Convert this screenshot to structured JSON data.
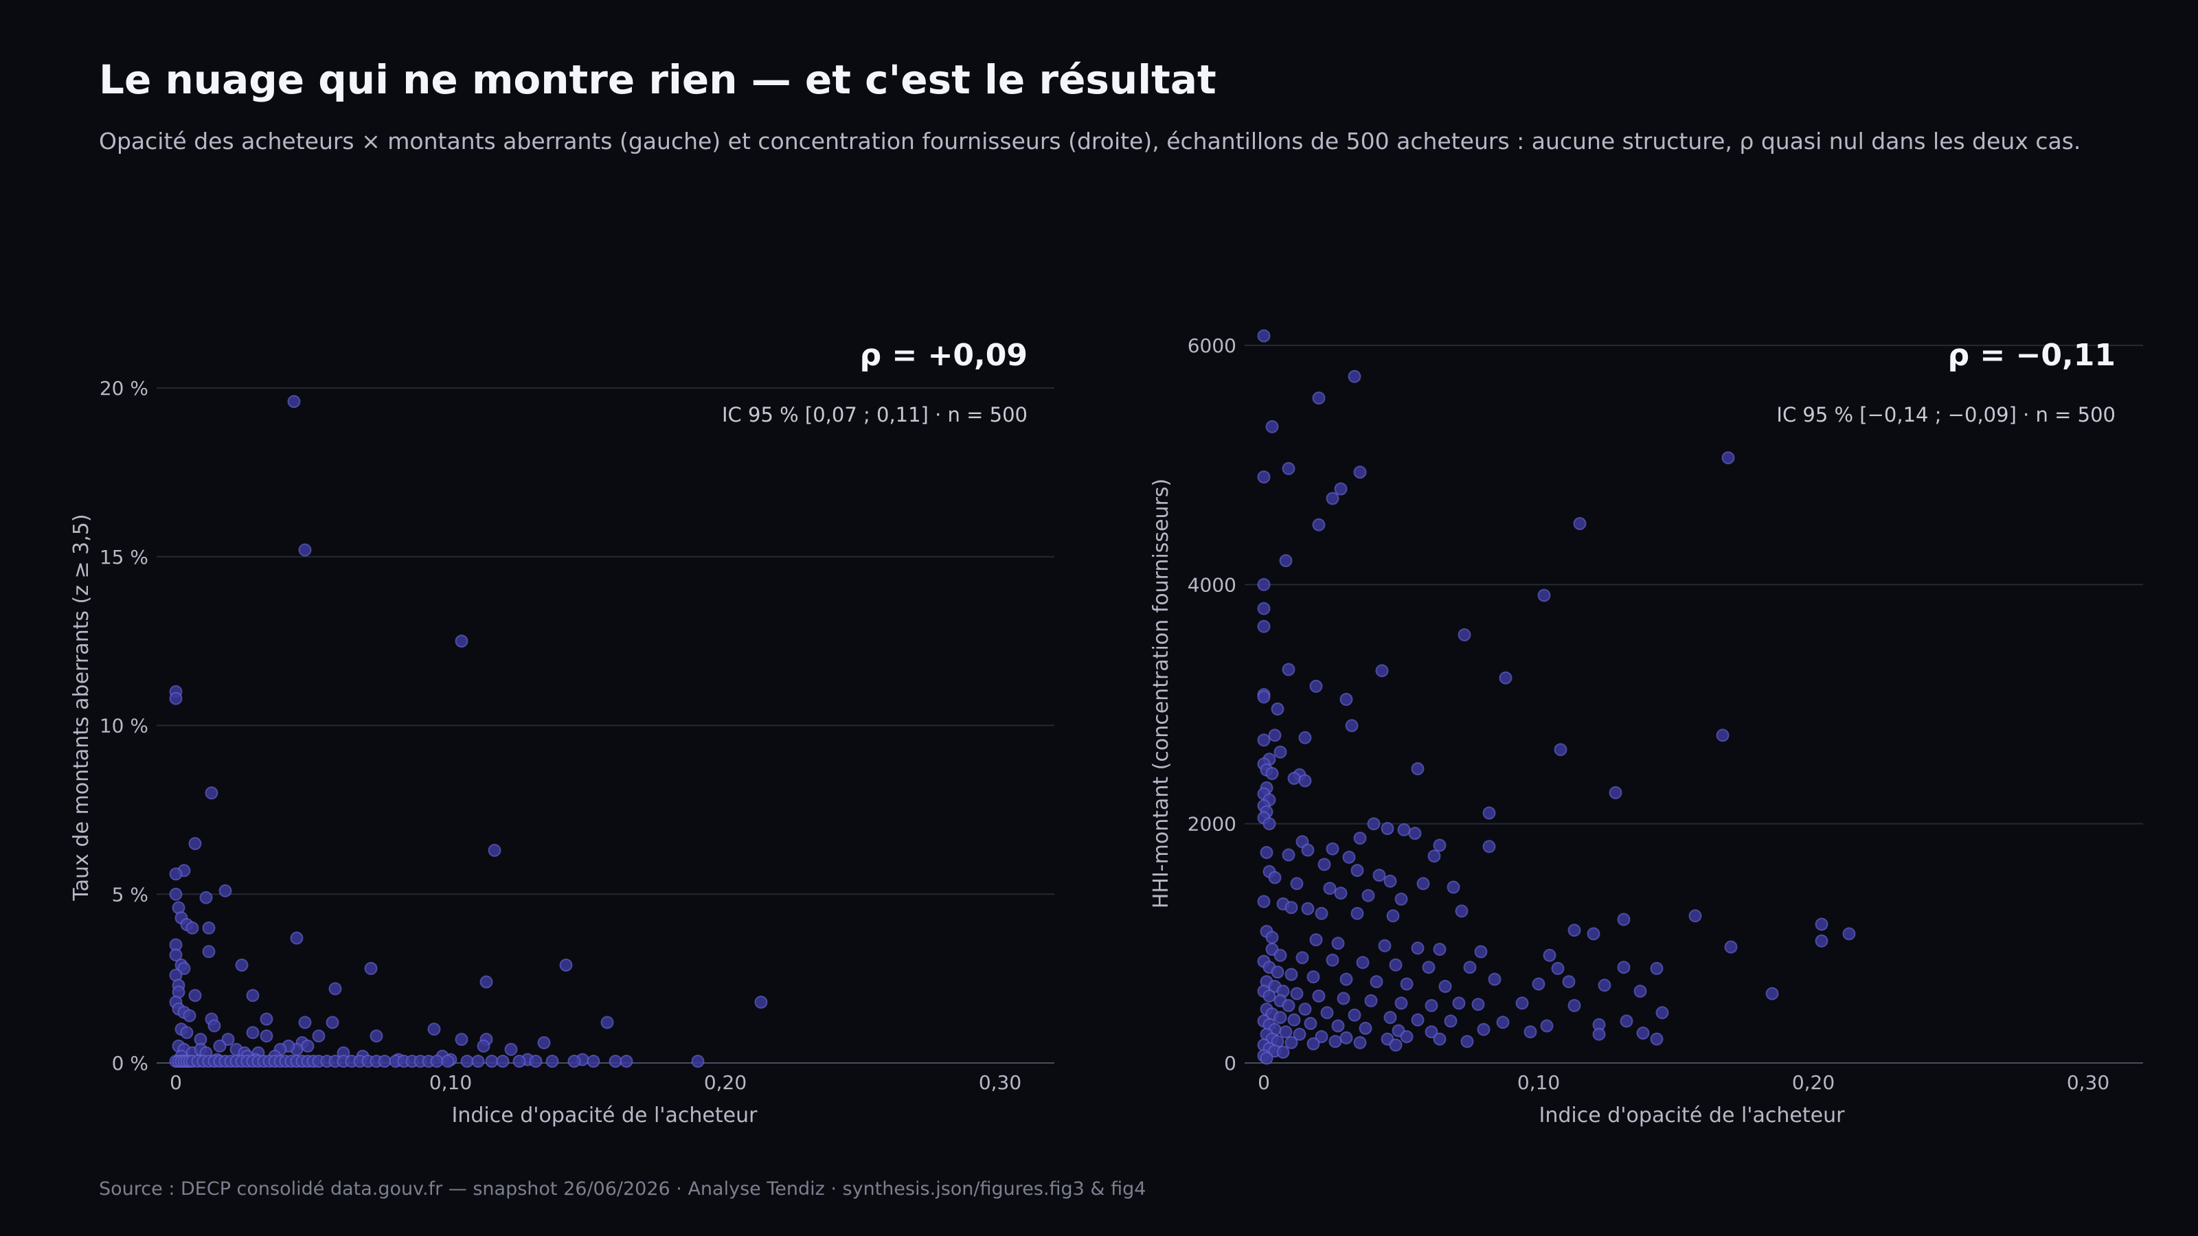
{
  "title": "Le nuage qui ne montre rien — et c'est le résultat",
  "subtitle": "Opacité des acheteurs × montants aberrants (gauche) et concentration fournisseurs (droite), échantillons de 500 acheteurs : aucune structure, ρ quasi nul dans les deux cas.",
  "footer": "Source : DECP consolidé data.gouv.fr — snapshot 26/06/2026 · Analyse Tendiz  ·  synthesis.json/figures.fig3 & fig4",
  "colors": {
    "background": "#0a0b11",
    "point_fill": "#3b3a9a",
    "point_stroke": "#6a69d8",
    "grid": "#262833",
    "axis": "#4a4d5c",
    "tick_text": "#b6b8c6"
  },
  "chart_data": [
    {
      "type": "scatter",
      "xlabel": "Indice d'opacité de l'acheteur",
      "ylabel": "Taux de montants aberrants (z ≥ 3,5)",
      "xlim": [
        -0.003,
        0.32
      ],
      "ylim": [
        0,
        20
      ],
      "x_ticks": [
        0,
        0.1,
        0.2,
        0.3
      ],
      "x_tick_labels": [
        "0",
        "0,10",
        "0,20",
        "0,30"
      ],
      "y_ticks": [
        0,
        5,
        10,
        15,
        20
      ],
      "y_tick_labels": [
        "0 %",
        "5 %",
        "10 %",
        "15 %",
        "20 %"
      ],
      "grid": true,
      "annotation": {
        "rho": "ρ = +0,09",
        "ci": "IC 95 % [0,07 ; 0,11] · n = 500"
      },
      "points": [
        [
          0.043,
          19.6
        ],
        [
          0.047,
          15.2
        ],
        [
          0.104,
          12.5
        ],
        [
          0,
          11.0
        ],
        [
          0,
          10.8
        ],
        [
          0.013,
          8.0
        ],
        [
          0.116,
          6.3
        ],
        [
          0.007,
          6.5
        ],
        [
          0.003,
          5.7
        ],
        [
          0,
          5.6
        ],
        [
          0.018,
          5.1
        ],
        [
          0.011,
          4.9
        ],
        [
          0,
          5.0
        ],
        [
          0.001,
          4.6
        ],
        [
          0.002,
          4.3
        ],
        [
          0.004,
          4.1
        ],
        [
          0.006,
          4.0
        ],
        [
          0.012,
          4.0
        ],
        [
          0.044,
          3.7
        ],
        [
          0,
          3.5
        ],
        [
          0,
          3.2
        ],
        [
          0.012,
          3.3
        ],
        [
          0.002,
          2.9
        ],
        [
          0.003,
          2.8
        ],
        [
          0.024,
          2.9
        ],
        [
          0.142,
          2.9
        ],
        [
          0.071,
          2.8
        ],
        [
          0.113,
          2.4
        ],
        [
          0,
          2.6
        ],
        [
          0.001,
          2.3
        ],
        [
          0.058,
          2.2
        ],
        [
          0.001,
          2.1
        ],
        [
          0.028,
          2.0
        ],
        [
          0.007,
          2.0
        ],
        [
          0,
          1.8
        ],
        [
          0.213,
          1.8
        ],
        [
          0.001,
          1.6
        ],
        [
          0.003,
          1.5
        ],
        [
          0.005,
          1.4
        ],
        [
          0.013,
          1.3
        ],
        [
          0.033,
          1.3
        ],
        [
          0.047,
          1.2
        ],
        [
          0.057,
          1.2
        ],
        [
          0.157,
          1.2
        ],
        [
          0.014,
          1.1
        ],
        [
          0.028,
          0.9
        ],
        [
          0.002,
          1.0
        ],
        [
          0.004,
          0.9
        ],
        [
          0.094,
          1.0
        ],
        [
          0.033,
          0.8
        ],
        [
          0.073,
          0.8
        ],
        [
          0.052,
          0.8
        ],
        [
          0.009,
          0.7
        ],
        [
          0.019,
          0.7
        ],
        [
          0.104,
          0.7
        ],
        [
          0.113,
          0.7
        ],
        [
          0.134,
          0.6
        ],
        [
          0.112,
          0.5
        ],
        [
          0.122,
          0.4
        ],
        [
          0.046,
          0.6
        ],
        [
          0.048,
          0.5
        ],
        [
          0.044,
          0.4
        ],
        [
          0.041,
          0.5
        ],
        [
          0.038,
          0.4
        ],
        [
          0.016,
          0.5
        ],
        [
          0.022,
          0.4
        ],
        [
          0.03,
          0.3
        ],
        [
          0.036,
          0.2
        ],
        [
          0.061,
          0.3
        ],
        [
          0.068,
          0.2
        ],
        [
          0.081,
          0.1
        ],
        [
          0.001,
          0.5
        ],
        [
          0.003,
          0.4
        ],
        [
          0.006,
          0.3
        ],
        [
          0.009,
          0.4
        ],
        [
          0.011,
          0.3
        ],
        [
          0.025,
          0.3
        ],
        [
          0.026,
          0.2
        ],
        [
          0.029,
          0.1
        ],
        [
          0.002,
          0.2
        ],
        [
          0.1,
          0.1
        ],
        [
          0.148,
          0.1
        ],
        [
          0.128,
          0.1
        ],
        [
          0.097,
          0.2
        ],
        [
          0.015,
          0.1
        ],
        [
          0,
          0.05
        ],
        [
          0.001,
          0.05
        ],
        [
          0.002,
          0.05
        ],
        [
          0.003,
          0.05
        ],
        [
          0.004,
          0.05
        ],
        [
          0.005,
          0.05
        ],
        [
          0.006,
          0.05
        ],
        [
          0.008,
          0.05
        ],
        [
          0.01,
          0.05
        ],
        [
          0.012,
          0.05
        ],
        [
          0.014,
          0.05
        ],
        [
          0.016,
          0.05
        ],
        [
          0.018,
          0.05
        ],
        [
          0.02,
          0.05
        ],
        [
          0.022,
          0.05
        ],
        [
          0.024,
          0.05
        ],
        [
          0.026,
          0.05
        ],
        [
          0.028,
          0.05
        ],
        [
          0.03,
          0.05
        ],
        [
          0.032,
          0.05
        ],
        [
          0.034,
          0.05
        ],
        [
          0.036,
          0.05
        ],
        [
          0.038,
          0.05
        ],
        [
          0.04,
          0.05
        ],
        [
          0.042,
          0.05
        ],
        [
          0.044,
          0.05
        ],
        [
          0.046,
          0.05
        ],
        [
          0.048,
          0.05
        ],
        [
          0.05,
          0.05
        ],
        [
          0.052,
          0.05
        ],
        [
          0.055,
          0.05
        ],
        [
          0.058,
          0.05
        ],
        [
          0.061,
          0.05
        ],
        [
          0.064,
          0.05
        ],
        [
          0.067,
          0.05
        ],
        [
          0.07,
          0.05
        ],
        [
          0.073,
          0.05
        ],
        [
          0.076,
          0.05
        ],
        [
          0.08,
          0.05
        ],
        [
          0.083,
          0.05
        ],
        [
          0.086,
          0.05
        ],
        [
          0.089,
          0.05
        ],
        [
          0.092,
          0.05
        ],
        [
          0.095,
          0.05
        ],
        [
          0.099,
          0.05
        ],
        [
          0.106,
          0.05
        ],
        [
          0.11,
          0.05
        ],
        [
          0.115,
          0.05
        ],
        [
          0.119,
          0.05
        ],
        [
          0.125,
          0.05
        ],
        [
          0.131,
          0.05
        ],
        [
          0.137,
          0.05
        ],
        [
          0.145,
          0.05
        ],
        [
          0.152,
          0.05
        ],
        [
          0.16,
          0.05
        ],
        [
          0.164,
          0.05
        ],
        [
          0.19,
          0.05
        ]
      ]
    },
    {
      "type": "scatter",
      "xlabel": "Indice d'opacité de l'acheteur",
      "ylabel": "HHI-montant (concentration fournisseurs)",
      "xlim": [
        -0.003,
        0.32
      ],
      "ylim": [
        0,
        6000
      ],
      "x_ticks": [
        0,
        0.1,
        0.2,
        0.3
      ],
      "x_tick_labels": [
        "0",
        "0,10",
        "0,20",
        "0,30"
      ],
      "y_ticks": [
        0,
        2000,
        4000,
        6000
      ],
      "y_tick_labels": [
        "0",
        "2000",
        "4000",
        "6000"
      ],
      "grid": true,
      "annotation": {
        "rho": "ρ = −0,11",
        "ci": "IC 95 % [−0,14 ; −0,09] · n = 500"
      },
      "points": [
        [
          0,
          6080
        ],
        [
          0.033,
          5740
        ],
        [
          0.02,
          5560
        ],
        [
          0.003,
          5320
        ],
        [
          0.169,
          5060
        ],
        [
          0.009,
          4970
        ],
        [
          0.035,
          4940
        ],
        [
          0,
          4900
        ],
        [
          0.028,
          4800
        ],
        [
          0.025,
          4720
        ],
        [
          0.02,
          4500
        ],
        [
          0.115,
          4510
        ],
        [
          0.008,
          4200
        ],
        [
          0,
          4000
        ],
        [
          0.102,
          3910
        ],
        [
          0,
          3800
        ],
        [
          0,
          3650
        ],
        [
          0.073,
          3580
        ],
        [
          0.009,
          3290
        ],
        [
          0.043,
          3280
        ],
        [
          0.088,
          3220
        ],
        [
          0.019,
          3150
        ],
        [
          0,
          3080
        ],
        [
          0,
          3060
        ],
        [
          0.03,
          3040
        ],
        [
          0.005,
          2960
        ],
        [
          0.032,
          2820
        ],
        [
          0.167,
          2740
        ],
        [
          0.004,
          2740
        ],
        [
          0.015,
          2720
        ],
        [
          0,
          2700
        ],
        [
          0.108,
          2620
        ],
        [
          0.006,
          2600
        ],
        [
          0.002,
          2540
        ],
        [
          0,
          2500
        ],
        [
          0.056,
          2460
        ],
        [
          0.001,
          2450
        ],
        [
          0.003,
          2420
        ],
        [
          0.013,
          2410
        ],
        [
          0.011,
          2380
        ],
        [
          0.015,
          2360
        ],
        [
          0.001,
          2300
        ],
        [
          0.128,
          2260
        ],
        [
          0,
          2250
        ],
        [
          0.002,
          2200
        ],
        [
          0,
          2150
        ],
        [
          0.001,
          2100
        ],
        [
          0.082,
          2090
        ],
        [
          0,
          2050
        ],
        [
          0.002,
          2000
        ],
        [
          0.04,
          2000
        ],
        [
          0.045,
          1960
        ],
        [
          0.051,
          1950
        ],
        [
          0.055,
          1920
        ],
        [
          0.035,
          1880
        ],
        [
          0.014,
          1850
        ],
        [
          0.082,
          1810
        ],
        [
          0.064,
          1820
        ],
        [
          0.025,
          1790
        ],
        [
          0.016,
          1780
        ],
        [
          0.001,
          1760
        ],
        [
          0.009,
          1740
        ],
        [
          0.031,
          1720
        ],
        [
          0.062,
          1730
        ],
        [
          0.022,
          1660
        ],
        [
          0.034,
          1610
        ],
        [
          0.042,
          1570
        ],
        [
          0.046,
          1520
        ],
        [
          0.058,
          1500
        ],
        [
          0.069,
          1470
        ],
        [
          0.002,
          1600
        ],
        [
          0.004,
          1550
        ],
        [
          0.012,
          1500
        ],
        [
          0.024,
          1460
        ],
        [
          0.028,
          1420
        ],
        [
          0.038,
          1400
        ],
        [
          0.05,
          1370
        ],
        [
          0,
          1350
        ],
        [
          0.007,
          1330
        ],
        [
          0.01,
          1300
        ],
        [
          0.016,
          1290
        ],
        [
          0.021,
          1250
        ],
        [
          0.034,
          1250
        ],
        [
          0.047,
          1230
        ],
        [
          0.072,
          1270
        ],
        [
          0.131,
          1200
        ],
        [
          0.157,
          1230
        ],
        [
          0.203,
          1160
        ],
        [
          0.113,
          1110
        ],
        [
          0.12,
          1080
        ],
        [
          0.213,
          1080
        ],
        [
          0.203,
          1020
        ],
        [
          0.001,
          1100
        ],
        [
          0.003,
          1050
        ],
        [
          0.019,
          1030
        ],
        [
          0.027,
          1000
        ],
        [
          0.044,
          980
        ],
        [
          0.056,
          960
        ],
        [
          0.064,
          950
        ],
        [
          0.079,
          930
        ],
        [
          0.104,
          900
        ],
        [
          0.17,
          970
        ],
        [
          0.003,
          950
        ],
        [
          0.006,
          900
        ],
        [
          0.014,
          880
        ],
        [
          0.025,
          860
        ],
        [
          0.036,
          840
        ],
        [
          0.048,
          820
        ],
        [
          0.06,
          800
        ],
        [
          0.075,
          800
        ],
        [
          0.107,
          790
        ],
        [
          0.131,
          800
        ],
        [
          0.143,
          790
        ],
        [
          0,
          850
        ],
        [
          0.002,
          800
        ],
        [
          0.005,
          760
        ],
        [
          0.01,
          740
        ],
        [
          0.018,
          720
        ],
        [
          0.03,
          700
        ],
        [
          0.041,
          680
        ],
        [
          0.052,
          660
        ],
        [
          0.066,
          640
        ],
        [
          0.084,
          700
        ],
        [
          0.1,
          660
        ],
        [
          0.111,
          680
        ],
        [
          0.124,
          650
        ],
        [
          0.137,
          600
        ],
        [
          0.185,
          580
        ],
        [
          0.001,
          680
        ],
        [
          0.004,
          640
        ],
        [
          0.007,
          600
        ],
        [
          0.012,
          580
        ],
        [
          0.02,
          560
        ],
        [
          0.029,
          540
        ],
        [
          0.039,
          520
        ],
        [
          0.05,
          500
        ],
        [
          0.061,
          480
        ],
        [
          0.071,
          500
        ],
        [
          0.078,
          490
        ],
        [
          0.094,
          500
        ],
        [
          0.113,
          480
        ],
        [
          0.145,
          420
        ],
        [
          0,
          600
        ],
        [
          0.002,
          560
        ],
        [
          0.006,
          520
        ],
        [
          0.009,
          480
        ],
        [
          0.015,
          450
        ],
        [
          0.023,
          420
        ],
        [
          0.033,
          400
        ],
        [
          0.046,
          380
        ],
        [
          0.056,
          360
        ],
        [
          0.068,
          350
        ],
        [
          0.087,
          340
        ],
        [
          0.103,
          310
        ],
        [
          0.122,
          320
        ],
        [
          0.132,
          350
        ],
        [
          0.001,
          450
        ],
        [
          0.003,
          410
        ],
        [
          0.006,
          380
        ],
        [
          0.011,
          360
        ],
        [
          0.017,
          330
        ],
        [
          0.027,
          310
        ],
        [
          0.037,
          290
        ],
        [
          0.049,
          270
        ],
        [
          0.061,
          260
        ],
        [
          0.08,
          280
        ],
        [
          0.097,
          260
        ],
        [
          0.122,
          240
        ],
        [
          0.138,
          250
        ],
        [
          0.143,
          200
        ],
        [
          0,
          350
        ],
        [
          0.002,
          320
        ],
        [
          0.004,
          280
        ],
        [
          0.008,
          260
        ],
        [
          0.013,
          240
        ],
        [
          0.021,
          220
        ],
        [
          0.03,
          210
        ],
        [
          0.045,
          200
        ],
        [
          0.052,
          220
        ],
        [
          0.064,
          200
        ],
        [
          0.074,
          180
        ],
        [
          0.001,
          240
        ],
        [
          0.003,
          200
        ],
        [
          0.005,
          180
        ],
        [
          0.01,
          170
        ],
        [
          0.018,
          160
        ],
        [
          0.026,
          180
        ],
        [
          0.035,
          170
        ],
        [
          0.048,
          150
        ],
        [
          0,
          150
        ],
        [
          0.002,
          120
        ],
        [
          0.004,
          100
        ],
        [
          0.007,
          90
        ],
        [
          0,
          60
        ],
        [
          0.001,
          40
        ]
      ]
    }
  ]
}
